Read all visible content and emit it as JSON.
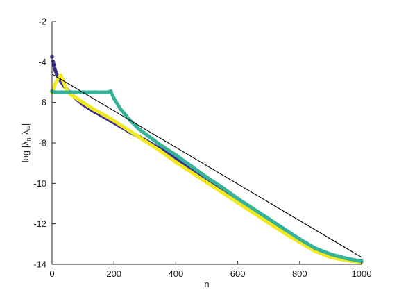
{
  "chart_data": {
    "type": "scatter",
    "title": "",
    "xlabel": "n",
    "ylabel_parts": {
      "prefix": "log |",
      "lambda1": "λ",
      "sub1": "n",
      "minus": "-",
      "lambda2": "λ",
      "sub2": "∞",
      "suffix": "|"
    },
    "xlim": [
      0,
      1000
    ],
    "ylim": [
      -14,
      -2
    ],
    "xticks": [
      "0",
      "200",
      "400",
      "600",
      "800",
      "1000"
    ],
    "yticks": [
      "-14",
      "-12",
      "-10",
      "-8",
      "-6",
      "-4",
      "-2"
    ],
    "grid": false,
    "box": false,
    "colors": {
      "series_blue": "#3b2f8f",
      "series_yellow": "#f2e81e",
      "series_teal": "#35b39a",
      "reference_line": "#000000",
      "axis": "#262626"
    },
    "series": [
      {
        "marker": "dot",
        "color_key": "series_blue",
        "points": [
          [
            0,
            -3.75
          ],
          [
            5,
            -4.1
          ],
          [
            10,
            -4.4
          ],
          [
            15,
            -4.6
          ],
          [
            20,
            -4.75
          ],
          [
            30,
            -5.0
          ],
          [
            40,
            -5.2
          ],
          [
            60,
            -5.55
          ],
          [
            80,
            -5.85
          ],
          [
            100,
            -6.1
          ],
          [
            130,
            -6.4
          ],
          [
            160,
            -6.65
          ],
          [
            200,
            -7.0
          ],
          [
            250,
            -7.45
          ],
          [
            300,
            -7.85
          ],
          [
            350,
            -8.3
          ],
          [
            400,
            -8.75
          ],
          [
            450,
            -9.25
          ],
          [
            500,
            -9.8
          ],
          [
            550,
            -10.3
          ],
          [
            600,
            -10.85
          ],
          [
            650,
            -11.35
          ],
          [
            700,
            -11.85
          ],
          [
            750,
            -12.35
          ],
          [
            800,
            -12.85
          ],
          [
            850,
            -13.3
          ],
          [
            900,
            -13.6
          ],
          [
            950,
            -13.75
          ],
          [
            1000,
            -13.9
          ]
        ]
      },
      {
        "marker": "dot",
        "color_key": "series_yellow",
        "points": [
          [
            0,
            -5.5
          ],
          [
            5,
            -5.3
          ],
          [
            10,
            -5.1
          ],
          [
            15,
            -4.95
          ],
          [
            20,
            -4.8
          ],
          [
            25,
            -4.7
          ],
          [
            28,
            -4.65
          ],
          [
            35,
            -4.9
          ],
          [
            45,
            -5.3
          ],
          [
            60,
            -5.6
          ],
          [
            80,
            -5.8
          ],
          [
            100,
            -6.0
          ],
          [
            130,
            -6.3
          ],
          [
            160,
            -6.55
          ],
          [
            200,
            -6.9
          ],
          [
            250,
            -7.4
          ],
          [
            300,
            -7.9
          ],
          [
            350,
            -8.4
          ],
          [
            400,
            -8.95
          ],
          [
            450,
            -9.45
          ],
          [
            500,
            -9.95
          ],
          [
            550,
            -10.45
          ],
          [
            600,
            -10.95
          ],
          [
            650,
            -11.45
          ],
          [
            700,
            -11.95
          ],
          [
            750,
            -12.45
          ],
          [
            800,
            -12.9
          ],
          [
            850,
            -13.35
          ],
          [
            900,
            -13.65
          ],
          [
            950,
            -13.8
          ],
          [
            1000,
            -13.9
          ]
        ]
      },
      {
        "marker": "dot",
        "color_key": "series_teal",
        "points": [
          [
            0,
            -5.45
          ],
          [
            10,
            -5.5
          ],
          [
            30,
            -5.5
          ],
          [
            60,
            -5.5
          ],
          [
            100,
            -5.5
          ],
          [
            140,
            -5.5
          ],
          [
            180,
            -5.5
          ],
          [
            190,
            -5.45
          ],
          [
            200,
            -5.8
          ],
          [
            220,
            -6.3
          ],
          [
            250,
            -6.85
          ],
          [
            280,
            -7.3
          ],
          [
            310,
            -7.65
          ],
          [
            350,
            -8.1
          ],
          [
            400,
            -8.6
          ],
          [
            450,
            -9.15
          ],
          [
            500,
            -9.7
          ],
          [
            550,
            -10.2
          ],
          [
            600,
            -10.75
          ],
          [
            650,
            -11.25
          ],
          [
            700,
            -11.75
          ],
          [
            750,
            -12.25
          ],
          [
            800,
            -12.75
          ],
          [
            850,
            -13.2
          ],
          [
            900,
            -13.5
          ],
          [
            950,
            -13.7
          ],
          [
            1000,
            -13.85
          ]
        ]
      }
    ],
    "reference_line": {
      "x": [
        0,
        1000
      ],
      "y": [
        -4.6,
        -13.65
      ],
      "color_key": "reference_line"
    }
  }
}
